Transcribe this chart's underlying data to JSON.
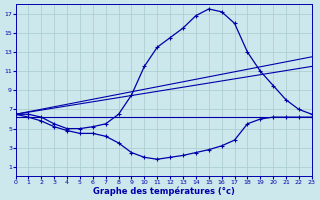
{
  "xlabel": "Graphe des températures (°c)",
  "bg_color": "#cce8ec",
  "grid_color": "#a8cccc",
  "line_color": "#0000aa",
  "xlim": [
    0,
    23
  ],
  "ylim": [
    0,
    18
  ],
  "xticks": [
    0,
    1,
    2,
    3,
    4,
    5,
    6,
    7,
    8,
    9,
    10,
    11,
    12,
    13,
    14,
    15,
    16,
    17,
    18,
    19,
    20,
    21,
    22,
    23
  ],
  "yticks": [
    1,
    3,
    5,
    7,
    9,
    11,
    13,
    15,
    17
  ],
  "main_curve_x": [
    0,
    1,
    2,
    3,
    4,
    5,
    6,
    7,
    8,
    9,
    10,
    11,
    12,
    13,
    14,
    15,
    16,
    17,
    18,
    19,
    20,
    21,
    22,
    23
  ],
  "main_curve_y": [
    6.5,
    6.5,
    6.2,
    5.5,
    5.0,
    5.0,
    5.2,
    5.5,
    6.5,
    8.5,
    11.5,
    13.5,
    14.5,
    15.5,
    16.8,
    17.5,
    17.2,
    16.0,
    13.0,
    11.0,
    9.5,
    8.0,
    7.0,
    6.5
  ],
  "dew_curve_x": [
    0,
    1,
    2,
    3,
    4,
    5,
    6,
    7,
    8,
    9,
    10,
    11,
    12,
    13,
    14,
    15,
    16,
    17,
    18,
    19,
    20,
    21,
    22,
    23
  ],
  "dew_curve_y": [
    6.5,
    6.2,
    5.8,
    5.2,
    4.8,
    4.5,
    4.5,
    4.2,
    3.5,
    2.5,
    2.0,
    1.8,
    2.0,
    2.2,
    2.5,
    2.8,
    3.2,
    3.8,
    5.5,
    6.0,
    6.2,
    6.2,
    6.2,
    6.2
  ],
  "trend1_x": [
    0,
    23
  ],
  "trend1_y": [
    6.5,
    11.5
  ],
  "trend2_x": [
    0,
    23
  ],
  "trend2_y": [
    6.5,
    12.5
  ],
  "flat_line_x": [
    0,
    23
  ],
  "flat_line_y": [
    6.2,
    6.2
  ]
}
